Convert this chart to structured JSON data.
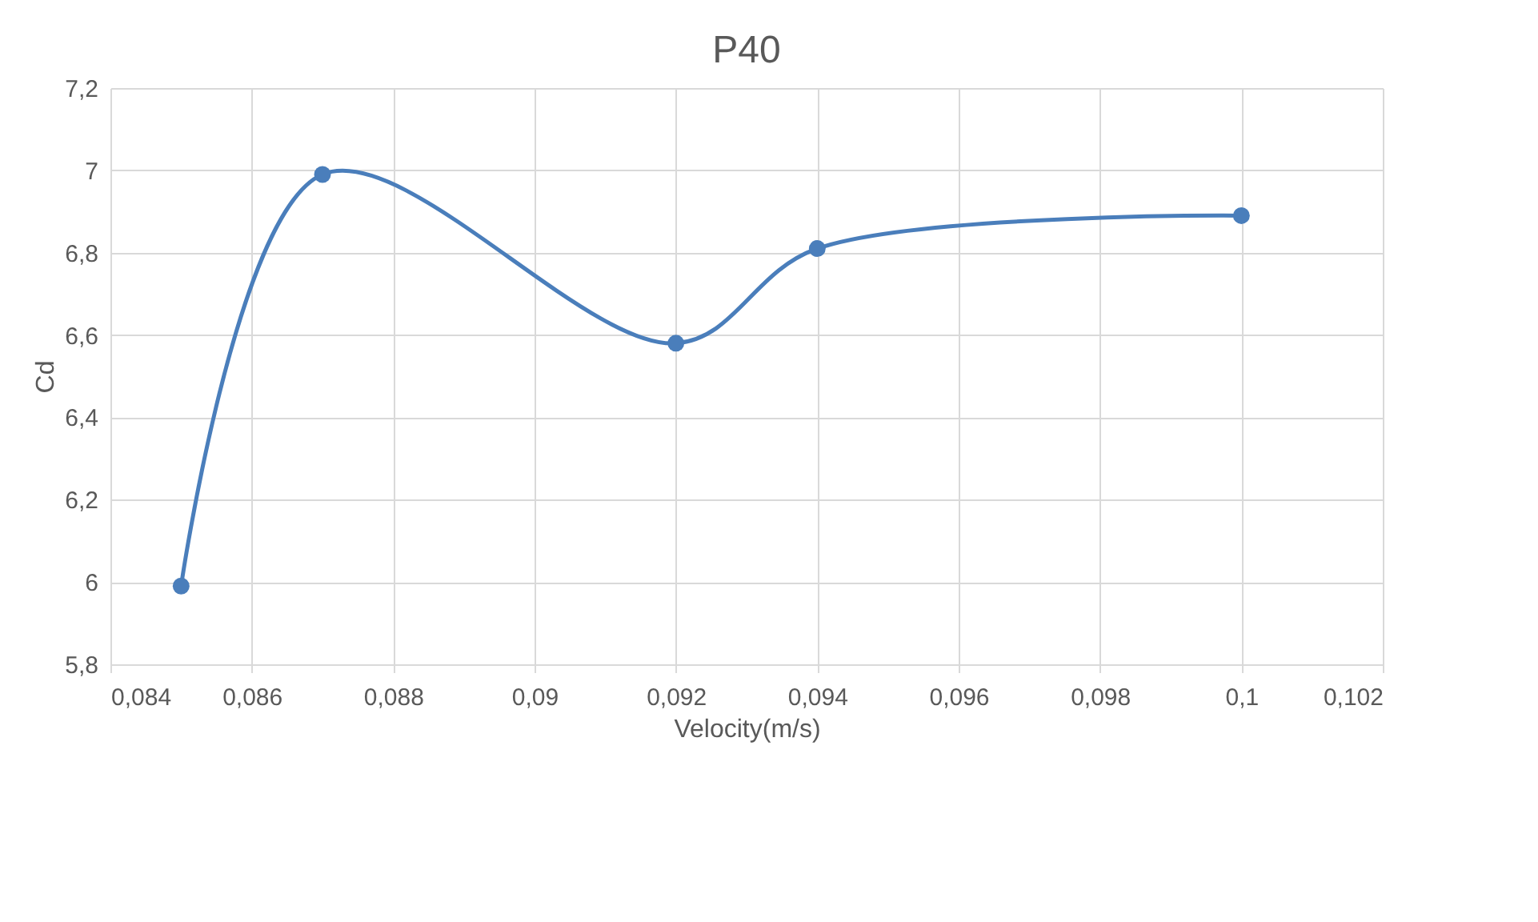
{
  "chart_data": {
    "type": "line",
    "title": "P40",
    "xlabel": "Velocity(m/s)",
    "ylabel": "Cd",
    "x": [
      0.085,
      0.087,
      0.092,
      0.094,
      0.1
    ],
    "series": [
      {
        "color": "#4a7ebb",
        "values": [
          5.99,
          6.99,
          6.58,
          6.81,
          6.89
        ]
      }
    ],
    "xlim": [
      0.084,
      0.102
    ],
    "xticks": [
      {
        "value": 0.084,
        "label": "0,084"
      },
      {
        "value": 0.086,
        "label": "0,086"
      },
      {
        "value": 0.088,
        "label": "0,088"
      },
      {
        "value": 0.09,
        "label": "0,09"
      },
      {
        "value": 0.092,
        "label": "0,092"
      },
      {
        "value": 0.094,
        "label": "0,094"
      },
      {
        "value": 0.096,
        "label": "0,096"
      },
      {
        "value": 0.098,
        "label": "0,098"
      },
      {
        "value": 0.1,
        "label": "0,1"
      },
      {
        "value": 0.102,
        "label": "0,102"
      }
    ],
    "ylim": [
      5.8,
      7.2
    ],
    "yticks": [
      {
        "value": 5.8,
        "label": "5,8"
      },
      6,
      {
        "value": 6.2,
        "label": "6,2"
      },
      {
        "value": 6.4,
        "label": "6,4"
      },
      {
        "value": 6.6,
        "label": "6,6"
      },
      {
        "value": 6.8,
        "label": "6,8"
      },
      7,
      {
        "value": 7.2,
        "label": "7,2"
      }
    ],
    "grid": true,
    "marker": "circle",
    "line_style": "solid"
  }
}
